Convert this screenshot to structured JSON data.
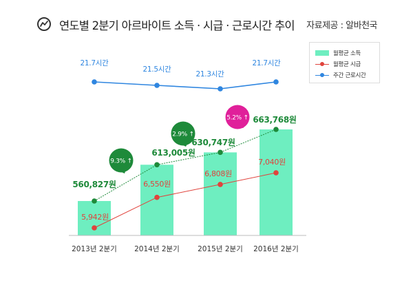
{
  "header": {
    "title": "연도별 2분기 아르바이트 소득 · 시급 · 근로시간 추이",
    "source": "자료제공 : 알바천국"
  },
  "legend": {
    "items": [
      {
        "label": "월평균 소득",
        "kind": "bar",
        "color": "#6eeec0"
      },
      {
        "label": "월평균 시급",
        "kind": "line",
        "color": "#e0433c"
      },
      {
        "label": "주간 근로시간",
        "kind": "line",
        "color": "#2f86e0"
      }
    ]
  },
  "chart_data": {
    "type": "bar",
    "categories": [
      "2013년 2분기",
      "2014년 2분기",
      "2015년 2분기",
      "2016년 2분기"
    ],
    "series": [
      {
        "name": "월평균 소득",
        "type": "bar",
        "values": [
          560827,
          613005,
          630747,
          663768
        ],
        "labels": [
          "560,827원",
          "613,005원",
          "630,747원",
          "663,768원"
        ],
        "color": "#6eeec0",
        "line_color": "#1e8a3a"
      },
      {
        "name": "월평균 시급",
        "type": "line",
        "values": [
          5942,
          6550,
          6808,
          7040
        ],
        "labels": [
          "5,942원",
          "6,550원",
          "6,808원",
          "7,040원"
        ],
        "color": "#e0433c"
      },
      {
        "name": "주간 근로시간",
        "type": "line",
        "values": [
          21.7,
          21.5,
          21.3,
          21.7
        ],
        "labels": [
          "21.7시간",
          "21.5시간",
          "21.3시간",
          "21.7시간"
        ],
        "color": "#2f86e0"
      }
    ],
    "annotations": [
      {
        "between": [
          0,
          1
        ],
        "text": "9.3% ↑",
        "color": "#1e8a3a"
      },
      {
        "between": [
          1,
          2
        ],
        "text": "2.9% ↑",
        "color": "#1e8a3a"
      },
      {
        "between": [
          2,
          3
        ],
        "text": "5.2% ↑",
        "color": "#e0209a"
      }
    ],
    "grid": false,
    "legend_position": "top-right"
  }
}
